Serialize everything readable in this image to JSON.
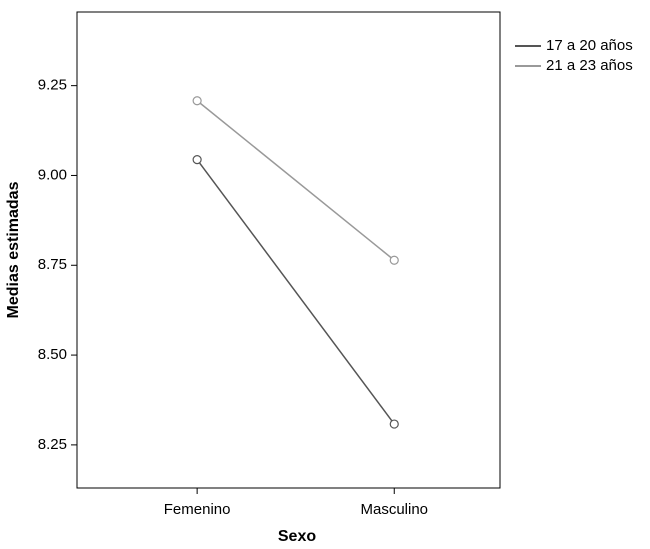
{
  "chart_data": {
    "type": "line",
    "x_label": "Sexo",
    "y_label": "Medias estimadas",
    "categories": [
      "Femenino",
      "Masculino"
    ],
    "series": [
      {
        "name": "17 a 20 años",
        "color": "#555555",
        "values": [
          9.044,
          8.308
        ]
      },
      {
        "name": "21 a 23 años",
        "color": "#999999",
        "values": [
          9.208,
          8.764
        ]
      }
    ],
    "ylim": [
      8.13,
      9.455
    ],
    "yticks": [
      8.25,
      {
        "value": 8.5,
        "label": "8.50"
      },
      8.75,
      {
        "value": 9,
        "label": "9.00"
      },
      9.25
    ],
    "legend": "right"
  }
}
